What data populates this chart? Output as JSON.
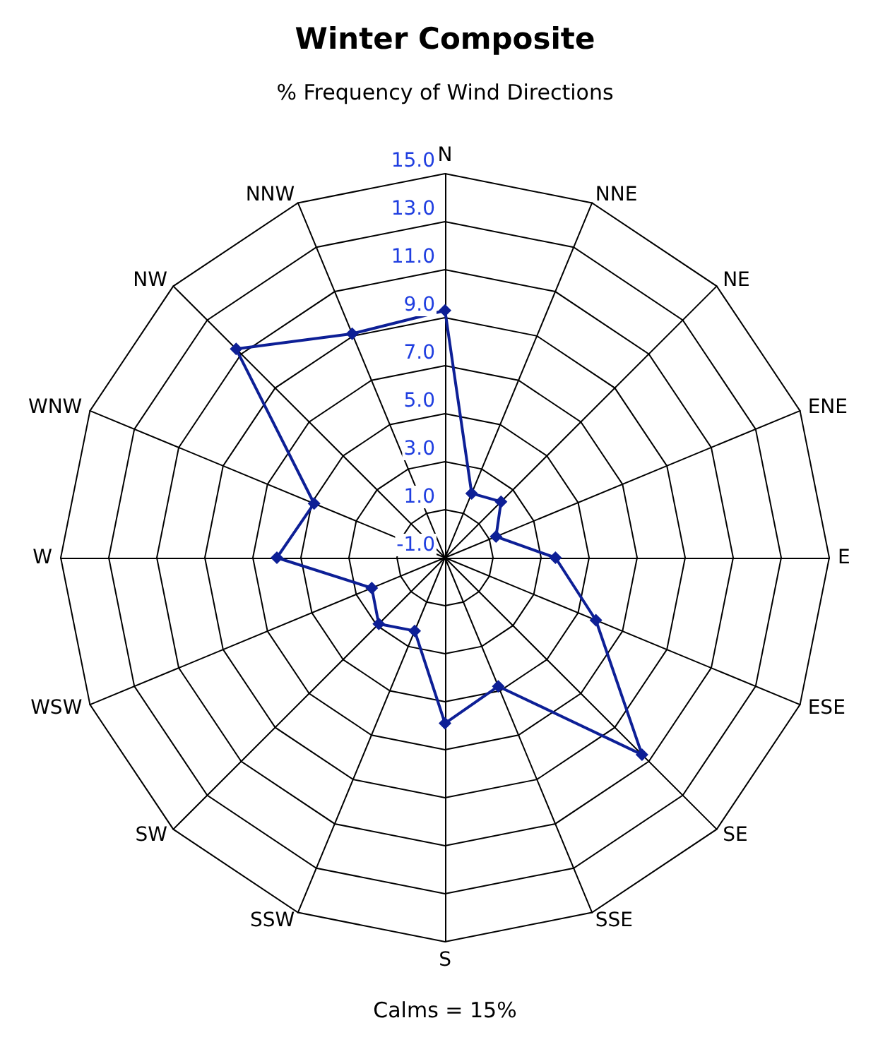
{
  "chart_data": {
    "type": "radar",
    "title": "Winter Composite",
    "subtitle": "% Frequency of Wind Directions",
    "annotations": [
      "Calms = 15%"
    ],
    "categories": [
      "N",
      "NNE",
      "NE",
      "ENE",
      "E",
      "ESE",
      "SE",
      "SSE",
      "S",
      "SSW",
      "SW",
      "WSW",
      "W",
      "WNW",
      "NW",
      "NNW"
    ],
    "series": [
      {
        "color": "#0d1f96",
        "values": [
          9.3,
          1.9,
          2.3,
          1.3,
          3.6,
          5.8,
          10.6,
          4.8,
          5.9,
          2.3,
          2.9,
          2.3,
          6.0,
          4.9,
          11.3,
          9.1
        ]
      }
    ],
    "ylim": [
      -1,
      15
    ],
    "yticks": [
      {
        "value": -1,
        "label": "-1.0"
      },
      {
        "value": 1,
        "label": "1.0"
      },
      {
        "value": 3,
        "label": "3.0"
      },
      {
        "value": 5,
        "label": "5.0"
      },
      {
        "value": 7,
        "label": "7.0"
      },
      {
        "value": 9,
        "label": "9.0"
      },
      {
        "value": 11,
        "label": "11.0"
      },
      {
        "value": 13,
        "label": "13.0"
      },
      {
        "value": 15,
        "label": "15.0"
      }
    ],
    "grid": true,
    "marker": "diamond",
    "line_style": "solid"
  }
}
